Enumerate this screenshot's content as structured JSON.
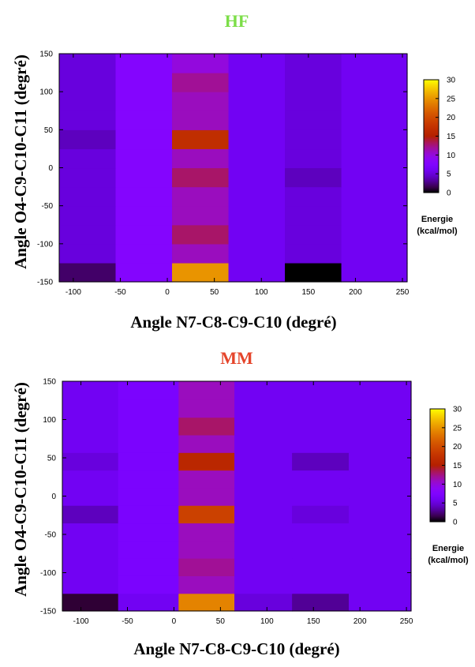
{
  "figure": {
    "legend_title": "Energie",
    "legend_unit": "(kcal/mol)",
    "colorbar_ticks": [
      0,
      5,
      10,
      15,
      20,
      25,
      30
    ],
    "colors": {
      "hf_title": "#7cde48",
      "mm_title": "#e5452b"
    }
  },
  "chart_data": [
    {
      "type": "heatmap",
      "title": "HF",
      "xlabel": "Angle N7-C8-C9-C10 (degré)",
      "ylabel": "Angle O4-C9-C10-C11 (degré)",
      "xlim": [
        -115,
        255
      ],
      "ylim": [
        -150,
        150
      ],
      "x_ticks": [
        -100,
        -50,
        0,
        50,
        100,
        150,
        200,
        250
      ],
      "y_ticks": [
        -150,
        -100,
        -50,
        0,
        50,
        100,
        150
      ],
      "x_edges": [
        -115,
        -55,
        5,
        65,
        125,
        185,
        255
      ],
      "y_edges": [
        -150,
        -125,
        -100,
        -75,
        -50,
        -25,
        0,
        25,
        50,
        75,
        100,
        125,
        150
      ],
      "colorbar_range": [
        0,
        30
      ],
      "colormap": "gnuplot",
      "z": [
        [
          2,
          8,
          25,
          6,
          0,
          6
        ],
        [
          5,
          8,
          11,
          6,
          5,
          6
        ],
        [
          5,
          8,
          13,
          6,
          5,
          6
        ],
        [
          5,
          8,
          11,
          6,
          5,
          6
        ],
        [
          5,
          8,
          11,
          6,
          5,
          6
        ],
        [
          5,
          8,
          13,
          6,
          4,
          6
        ],
        [
          5,
          8,
          11,
          6,
          5,
          6
        ],
        [
          4,
          8,
          17,
          6,
          5,
          6
        ],
        [
          5,
          8,
          11,
          6,
          5,
          6
        ],
        [
          5,
          8,
          11,
          6,
          5,
          6
        ],
        [
          5,
          8,
          12,
          6,
          5,
          6
        ],
        [
          5,
          8,
          10,
          6,
          5,
          6
        ]
      ]
    },
    {
      "type": "heatmap",
      "title": "MM",
      "xlabel": "Angle N7-C8-C9-C10 (degré)",
      "ylabel": "Angle O4-C9-C10-C11 (degré)",
      "xlim": [
        -120,
        255
      ],
      "ylim": [
        -150,
        150
      ],
      "x_ticks": [
        -100,
        -50,
        0,
        50,
        100,
        150,
        200,
        250
      ],
      "y_ticks": [
        -150,
        -100,
        -50,
        0,
        50,
        100,
        150
      ],
      "x_edges": [
        -120,
        -60,
        5,
        65,
        127,
        188,
        255
      ],
      "y_edges": [
        -150,
        -127,
        -104,
        -81,
        -58,
        -35,
        -12,
        11,
        34,
        57,
        80,
        103,
        126,
        150
      ],
      "colorbar_range": [
        0,
        30
      ],
      "colormap": "gnuplot",
      "z": [
        [
          1,
          6,
          24,
          5,
          3,
          6
        ],
        [
          6,
          7,
          11,
          6,
          6,
          6
        ],
        [
          6,
          7,
          12,
          6,
          6,
          6
        ],
        [
          6,
          7,
          11,
          6,
          6,
          6
        ],
        [
          6,
          7,
          11,
          6,
          6,
          6
        ],
        [
          4,
          7,
          19,
          6,
          5,
          6
        ],
        [
          6,
          7,
          11,
          6,
          6,
          6
        ],
        [
          6,
          7,
          11,
          6,
          6,
          6
        ],
        [
          5,
          7,
          16,
          6,
          4,
          6
        ],
        [
          6,
          7,
          11,
          6,
          6,
          6
        ],
        [
          6,
          7,
          13,
          6,
          6,
          6
        ],
        [
          6,
          7,
          11,
          6,
          6,
          6
        ],
        [
          6,
          7,
          11,
          6,
          6,
          6
        ]
      ]
    }
  ]
}
